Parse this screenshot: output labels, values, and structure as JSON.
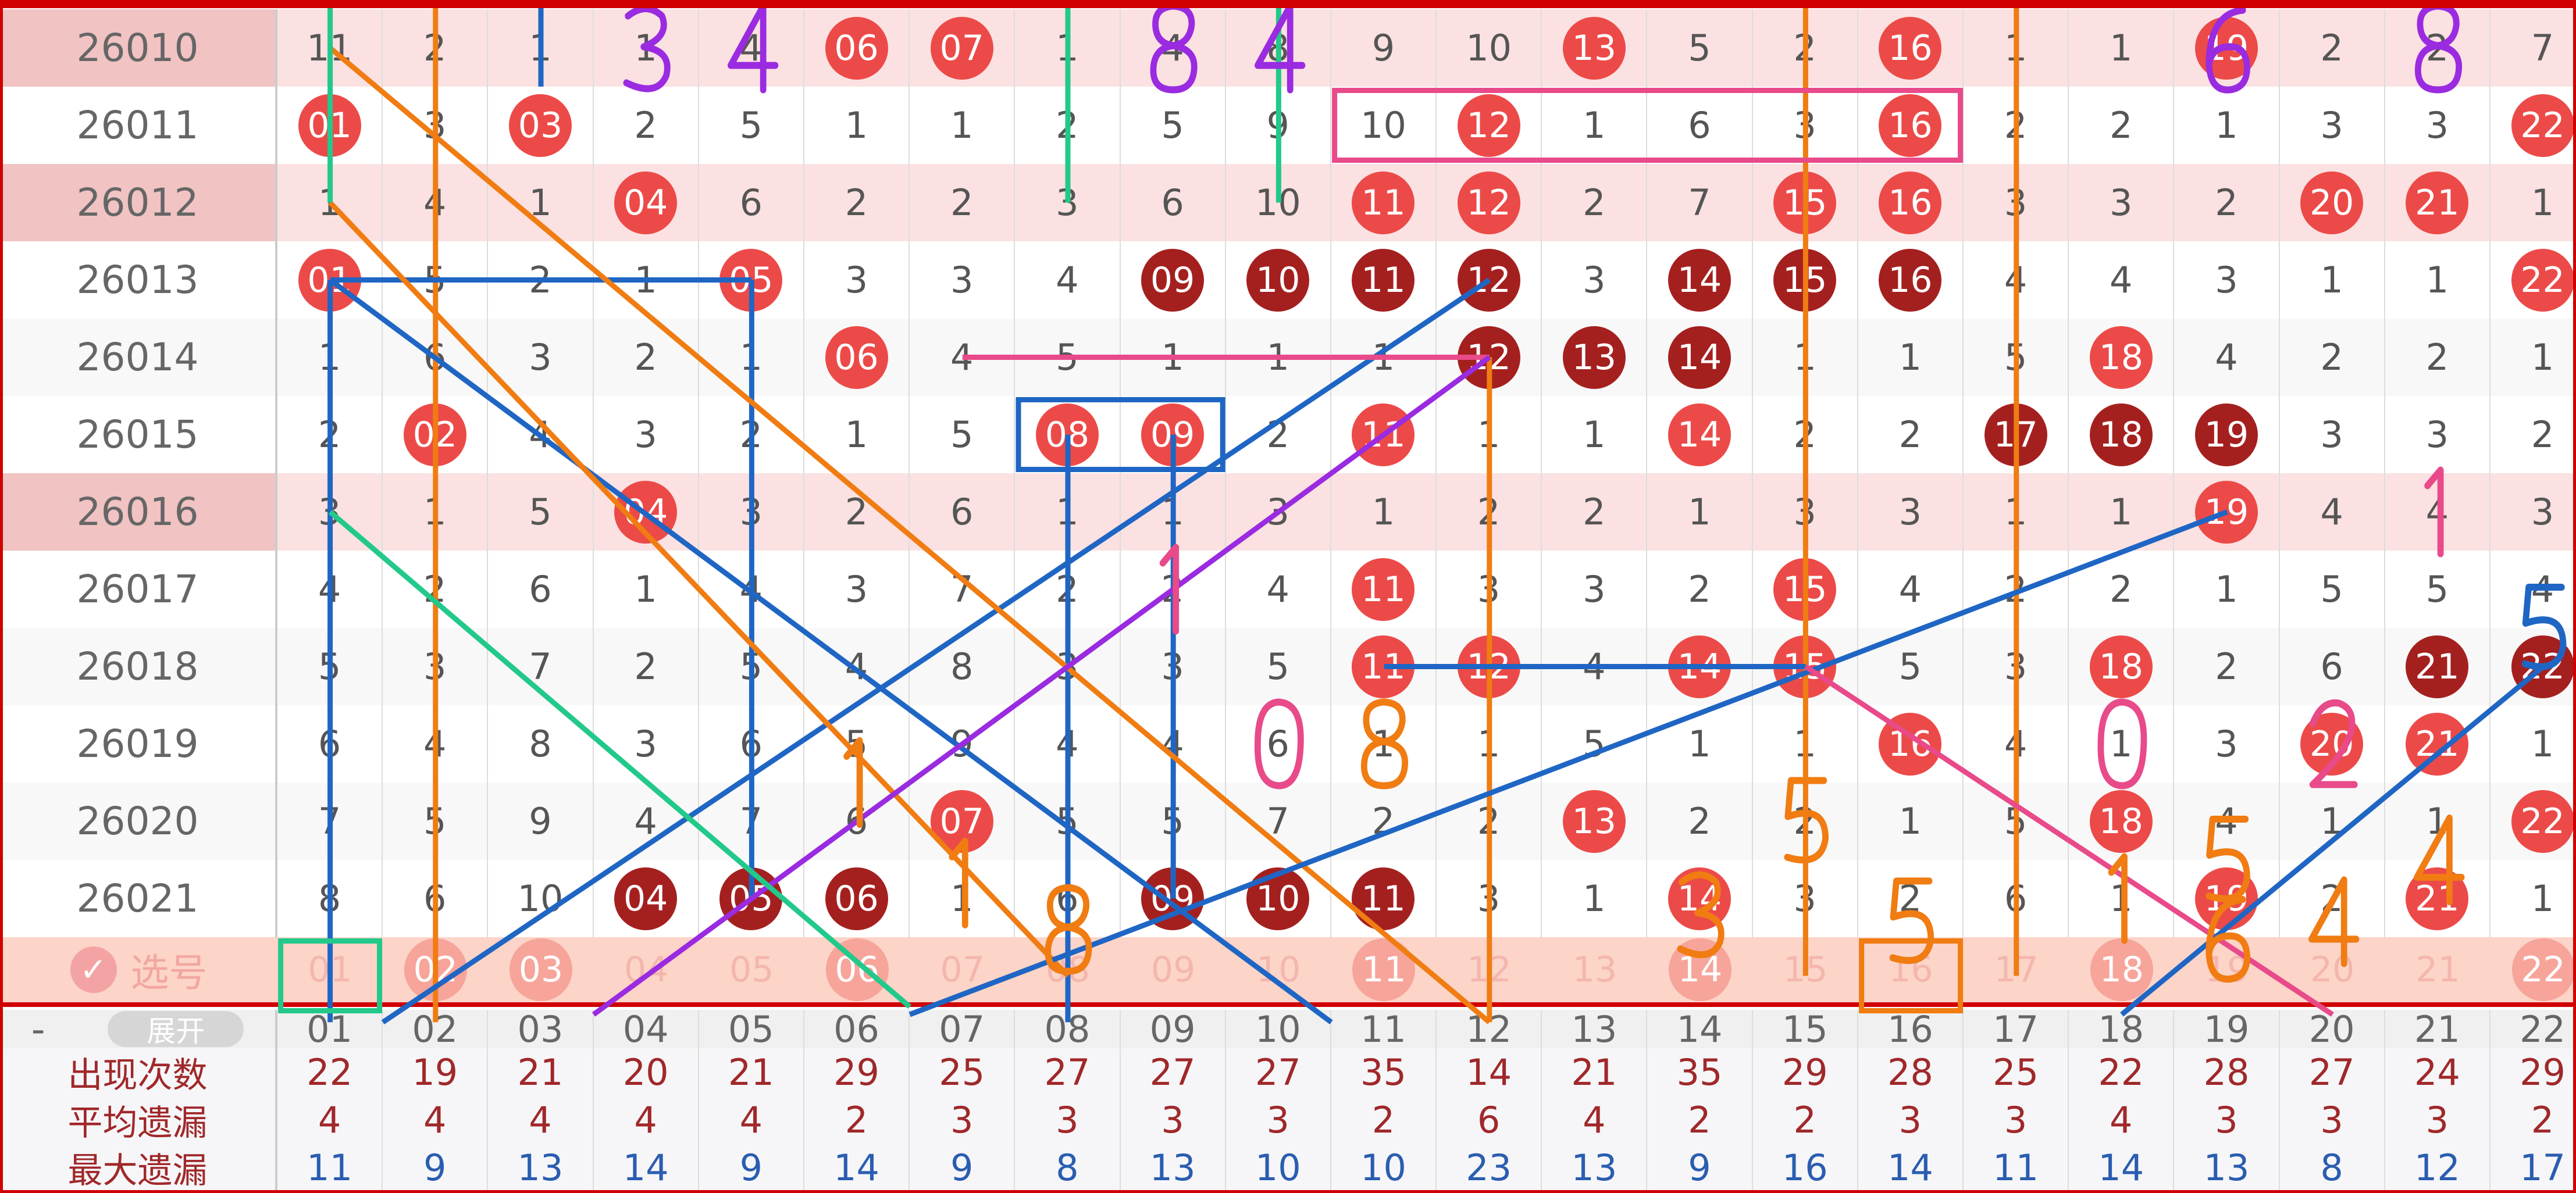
{
  "columns": [
    "01",
    "02",
    "03",
    "04",
    "05",
    "06",
    "07",
    "08",
    "09",
    "10",
    "11",
    "12",
    "13",
    "14",
    "15",
    "16",
    "17",
    "18",
    "19",
    "20",
    "21",
    "22"
  ],
  "colors": {
    "ball_red": "#ec4a48",
    "ball_dark": "#a4201f",
    "row_highlight": "#fbe1e1",
    "select_row": "#fcd4c8",
    "count_text": "#a0282a",
    "max_text": "#2a5db0"
  },
  "rows": [
    {
      "issue": "26010",
      "highlight": true,
      "cells": [
        "11",
        "2",
        "1",
        "1",
        "4",
        "06",
        "07",
        "1",
        "4",
        "8",
        "9",
        "10",
        "13",
        "5",
        "2",
        "16",
        "1",
        "1",
        "19",
        "2",
        "2",
        "7"
      ],
      "red": [
        "06",
        "07",
        "13",
        "16",
        "19"
      ],
      "dark": []
    },
    {
      "issue": "26011",
      "highlight": false,
      "cells": [
        "01",
        "3",
        "03",
        "2",
        "5",
        "1",
        "1",
        "2",
        "5",
        "9",
        "10",
        "12",
        "1",
        "6",
        "3",
        "16",
        "2",
        "2",
        "1",
        "3",
        "3",
        "22"
      ],
      "red": [
        "01",
        "03",
        "12",
        "16",
        "22"
      ],
      "dark": []
    },
    {
      "issue": "26012",
      "highlight": true,
      "cells": [
        "1",
        "4",
        "1",
        "04",
        "6",
        "2",
        "2",
        "3",
        "6",
        "10",
        "11",
        "12",
        "2",
        "7",
        "15",
        "16",
        "3",
        "3",
        "2",
        "20",
        "21",
        "1"
      ],
      "red": [
        "04",
        "11",
        "12",
        "15",
        "16",
        "20",
        "21"
      ],
      "dark": []
    },
    {
      "issue": "26013",
      "highlight": false,
      "cells": [
        "01",
        "5",
        "2",
        "1",
        "05",
        "3",
        "3",
        "4",
        "09",
        "10",
        "11",
        "12",
        "3",
        "14",
        "15",
        "16",
        "4",
        "4",
        "3",
        "1",
        "1",
        "22"
      ],
      "red": [
        "01",
        "05",
        "22"
      ],
      "dark": [
        "09",
        "10",
        "11",
        "12",
        "14",
        "15",
        "16"
      ]
    },
    {
      "issue": "26014",
      "highlight": false,
      "cells": [
        "1",
        "6",
        "3",
        "2",
        "1",
        "06",
        "4",
        "5",
        "1",
        "1",
        "1",
        "12",
        "13",
        "14",
        "1",
        "1",
        "5",
        "18",
        "4",
        "2",
        "2",
        "1"
      ],
      "red": [
        "06",
        "18"
      ],
      "dark": [
        "12",
        "13",
        "14"
      ]
    },
    {
      "issue": "26015",
      "highlight": false,
      "cells": [
        "2",
        "02",
        "4",
        "3",
        "2",
        "1",
        "5",
        "08",
        "09",
        "2",
        "11",
        "1",
        "1",
        "14",
        "2",
        "2",
        "17",
        "18",
        "19",
        "3",
        "3",
        "2"
      ],
      "red": [
        "02",
        "08",
        "09",
        "11",
        "14"
      ],
      "dark": [
        "17",
        "18",
        "19"
      ]
    },
    {
      "issue": "26016",
      "highlight": true,
      "cells": [
        "3",
        "1",
        "5",
        "04",
        "3",
        "2",
        "6",
        "1",
        "1",
        "3",
        "1",
        "2",
        "2",
        "1",
        "3",
        "3",
        "1",
        "1",
        "19",
        "4",
        "4",
        "3"
      ],
      "red": [
        "04",
        "19"
      ],
      "dark": []
    },
    {
      "issue": "26017",
      "highlight": false,
      "cells": [
        "4",
        "2",
        "6",
        "1",
        "4",
        "3",
        "7",
        "2",
        "2",
        "4",
        "11",
        "3",
        "3",
        "2",
        "15",
        "4",
        "2",
        "2",
        "1",
        "5",
        "5",
        "4"
      ],
      "red": [
        "11",
        "15"
      ],
      "dark": []
    },
    {
      "issue": "26018",
      "highlight": false,
      "cells": [
        "5",
        "3",
        "7",
        "2",
        "5",
        "4",
        "8",
        "3",
        "3",
        "5",
        "11",
        "12",
        "4",
        "14",
        "15",
        "5",
        "3",
        "18",
        "2",
        "6",
        "21",
        "22"
      ],
      "red": [
        "11",
        "12",
        "14",
        "15",
        "18"
      ],
      "dark": [
        "21",
        "22"
      ]
    },
    {
      "issue": "26019",
      "highlight": false,
      "cells": [
        "6",
        "4",
        "8",
        "3",
        "6",
        "5",
        "9",
        "4",
        "4",
        "6",
        "1",
        "1",
        "5",
        "1",
        "1",
        "16",
        "4",
        "1",
        "3",
        "20",
        "21",
        "1"
      ],
      "red": [
        "16",
        "20",
        "21"
      ],
      "dark": []
    },
    {
      "issue": "26020",
      "highlight": false,
      "cells": [
        "7",
        "5",
        "9",
        "4",
        "7",
        "6",
        "07",
        "5",
        "5",
        "7",
        "2",
        "2",
        "13",
        "2",
        "2",
        "1",
        "5",
        "18",
        "4",
        "1",
        "1",
        "22"
      ],
      "red": [
        "07",
        "13",
        "18",
        "22"
      ],
      "dark": []
    },
    {
      "issue": "26021",
      "highlight": false,
      "cells": [
        "8",
        "6",
        "10",
        "04",
        "05",
        "06",
        "1",
        "6",
        "09",
        "10",
        "11",
        "3",
        "1",
        "14",
        "3",
        "2",
        "6",
        "1",
        "19",
        "2",
        "21",
        "1"
      ],
      "red": [
        "14",
        "19",
        "21"
      ],
      "dark": [
        "04",
        "05",
        "06",
        "09",
        "10",
        "11"
      ]
    }
  ],
  "select_row": {
    "label": "选号",
    "selected": [
      "02",
      "03",
      "06",
      "11",
      "14",
      "18",
      "22"
    ]
  },
  "header": {
    "dash": "-",
    "expand_label": "展开"
  },
  "stats": [
    {
      "label": "出现次数",
      "kind": "count",
      "values": [
        "22",
        "19",
        "21",
        "20",
        "21",
        "29",
        "25",
        "27",
        "27",
        "27",
        "35",
        "14",
        "21",
        "35",
        "29",
        "28",
        "25",
        "22",
        "28",
        "27",
        "24",
        "29"
      ]
    },
    {
      "label": "平均遗漏",
      "kind": "avg",
      "values": [
        "4",
        "4",
        "4",
        "4",
        "4",
        "2",
        "3",
        "3",
        "3",
        "3",
        "2",
        "6",
        "4",
        "2",
        "2",
        "3",
        "3",
        "4",
        "3",
        "3",
        "3",
        "2"
      ]
    },
    {
      "label": "最大遗漏",
      "kind": "max",
      "values": [
        "11",
        "9",
        "13",
        "14",
        "9",
        "14",
        "9",
        "8",
        "13",
        "10",
        "10",
        "23",
        "13",
        "9",
        "16",
        "14",
        "11",
        "14",
        "13",
        "8",
        "12",
        "17"
      ]
    }
  ],
  "annotations": [
    "3",
    "4",
    "8",
    "4",
    "6",
    "8",
    "1",
    "1",
    "5",
    "1",
    "0",
    "8",
    "1",
    "0",
    "2",
    "5",
    "5",
    "4",
    "4",
    "3",
    "5",
    "1",
    "8",
    "6"
  ]
}
